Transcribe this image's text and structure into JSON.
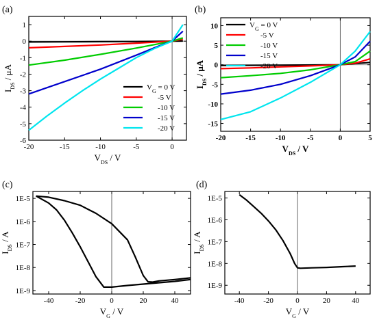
{
  "chart_data": [
    {
      "panel_label": "(a)",
      "type": "line",
      "xlabel_main": "V",
      "xlabel_sub": "DS",
      "xlabel_unit": " / V",
      "ylabel_main": "I",
      "ylabel_sub": "DS",
      "ylabel_unit": " / μA",
      "xlim": [
        -20,
        2
      ],
      "ylim": [
        -6,
        1.5
      ],
      "xticks": [
        -20,
        -15,
        -10,
        -5,
        0
      ],
      "yticks": [
        1,
        0,
        -1,
        -2,
        -3,
        -4,
        -5,
        -6
      ],
      "vline_x": 0,
      "legend_position": "bottom-right",
      "legend": {
        "prefix": "V",
        "prefix_sub": "G",
        "first": " = 0 V",
        "rest": [
          "-5 V",
          "-10 V",
          "-15 V",
          "-20 V"
        ]
      },
      "series": [
        {
          "color": "#000000",
          "x": [
            -20,
            -15,
            -10,
            -5,
            0,
            1.5
          ],
          "y": [
            -0.05,
            -0.04,
            -0.03,
            -0.02,
            0.0,
            0.01
          ]
        },
        {
          "color": "#ff0000",
          "x": [
            -20,
            -15,
            -10,
            -5,
            0,
            1.5
          ],
          "y": [
            -0.4,
            -0.32,
            -0.23,
            -0.12,
            0.0,
            0.12
          ]
        },
        {
          "color": "#00cc00",
          "x": [
            -20,
            -15,
            -10,
            -5,
            -2,
            0,
            1.5
          ],
          "y": [
            -1.45,
            -1.15,
            -0.8,
            -0.42,
            -0.17,
            0.0,
            0.2
          ]
        },
        {
          "color": "#0000cc",
          "x": [
            -20,
            -15,
            -10,
            -5,
            -2,
            0,
            1.5
          ],
          "y": [
            -3.2,
            -2.45,
            -1.7,
            -0.85,
            -0.32,
            0.0,
            0.6
          ]
        },
        {
          "color": "#00e5ee",
          "x": [
            -20,
            -17.5,
            -15,
            -12.5,
            -10,
            -7.5,
            -5,
            -2.5,
            0,
            1.5
          ],
          "y": [
            -5.4,
            -4.55,
            -3.75,
            -3.0,
            -2.3,
            -1.65,
            -1.0,
            -0.45,
            0.0,
            1.0
          ]
        }
      ]
    },
    {
      "panel_label": "(b)",
      "type": "line",
      "xlabel_main": "V",
      "xlabel_sub": "DS",
      "xlabel_unit": " / V",
      "ylabel_main": "I",
      "ylabel_sub": "DS",
      "ylabel_unit": " / μA",
      "bold_labels": true,
      "xlim": [
        -20,
        5
      ],
      "ylim": [
        -17,
        12
      ],
      "xticks": [
        -20,
        -15,
        -10,
        -5,
        0,
        5
      ],
      "yticks": [
        10,
        5,
        0,
        -5,
        -10,
        -15
      ],
      "vline_x": 0,
      "legend_position": "top-left",
      "legend": {
        "prefix": "V",
        "prefix_sub": "G",
        "first": " = 0 V",
        "rest": [
          "-5 V",
          "-10 V",
          "-15 V",
          "-20 V"
        ]
      },
      "series": [
        {
          "color": "#000000",
          "x": [
            -20,
            -10,
            0,
            5
          ],
          "y": [
            -0.2,
            -0.1,
            0.0,
            0.6
          ]
        },
        {
          "color": "#ff0000",
          "x": [
            -20,
            -15,
            -10,
            -5,
            0,
            2.5,
            5
          ],
          "y": [
            -1.0,
            -0.8,
            -0.55,
            -0.3,
            0.0,
            0.4,
            1.5
          ]
        },
        {
          "color": "#00cc00",
          "x": [
            -20,
            -15,
            -10,
            -5,
            0,
            2.5,
            5
          ],
          "y": [
            -3.3,
            -2.8,
            -2.2,
            -1.3,
            0.0,
            0.8,
            3.5
          ]
        },
        {
          "color": "#0000cc",
          "x": [
            -20,
            -15,
            -10,
            -5,
            0,
            2.5,
            5
          ],
          "y": [
            -7.5,
            -6.5,
            -5.0,
            -2.8,
            0.0,
            2.0,
            6.0
          ]
        },
        {
          "color": "#00e5ee",
          "x": [
            -20,
            -15,
            -10,
            -5,
            0,
            2.5,
            5
          ],
          "y": [
            -14.0,
            -12.0,
            -8.5,
            -4.5,
            0.0,
            3.5,
            8.5
          ]
        }
      ]
    },
    {
      "panel_label": "(c)",
      "type": "line",
      "xlabel_main": "V",
      "xlabel_sub": "G",
      "xlabel_unit": " / V",
      "ylabel_main": "I",
      "ylabel_sub": "DS",
      "ylabel_unit": " / A",
      "yscale": "log",
      "xlim": [
        -50,
        50
      ],
      "ylim_exp": [
        -9.15,
        -4.7
      ],
      "xticks": [
        -40,
        -20,
        0,
        20,
        40
      ],
      "yticks": [
        "1E-5",
        "1E-6",
        "1E-7",
        "1E-8",
        "1E-9"
      ],
      "ytick_exps": [
        -5,
        -6,
        -7,
        -8,
        -9
      ],
      "vline_x": 0,
      "series": [
        {
          "color": "#000000",
          "x": [
            -48,
            -40,
            -30,
            -20,
            -10,
            0,
            10,
            15,
            20,
            23,
            26,
            30,
            40,
            50
          ],
          "y_exp": [
            -4.9,
            -4.95,
            -5.1,
            -5.3,
            -5.65,
            -6.1,
            -6.8,
            -7.55,
            -8.35,
            -8.62,
            -8.63,
            -8.58,
            -8.52,
            -8.45
          ]
        },
        {
          "color": "#000000",
          "x": [
            -48,
            -40,
            -35,
            -30,
            -25,
            -20,
            -15,
            -10,
            -5,
            0,
            10,
            20,
            30,
            40,
            50
          ],
          "y_exp": [
            -4.9,
            -5.2,
            -5.5,
            -5.95,
            -6.5,
            -7.1,
            -7.75,
            -8.4,
            -8.85,
            -8.85,
            -8.78,
            -8.72,
            -8.66,
            -8.6,
            -8.52
          ]
        }
      ]
    },
    {
      "panel_label": "(d)",
      "type": "line",
      "xlabel_main": "V",
      "xlabel_sub": "G",
      "xlabel_unit": " / V",
      "ylabel_main": "I",
      "ylabel_sub": "DS",
      "ylabel_unit": " / A",
      "yscale": "log",
      "xlim": [
        -50,
        50
      ],
      "ylim_exp": [
        -9.4,
        -4.7
      ],
      "xticks": [
        -40,
        -20,
        0,
        20,
        40
      ],
      "yticks": [
        "1E-5",
        "1E-6",
        "1E-7",
        "1E-8",
        "1E-9"
      ],
      "ytick_exps": [
        -5,
        -6,
        -7,
        -8,
        -9
      ],
      "vline_x": 0,
      "series": [
        {
          "color": "#000000",
          "x": [
            -40,
            -35,
            -30,
            -25,
            -20,
            -15,
            -10,
            -5,
            -2,
            0,
            2,
            10,
            20,
            30,
            40
          ],
          "y_exp": [
            -4.85,
            -5.1,
            -5.4,
            -5.7,
            -6.05,
            -6.45,
            -6.95,
            -7.55,
            -8.0,
            -8.2,
            -8.22,
            -8.2,
            -8.18,
            -8.15,
            -8.12
          ]
        }
      ]
    }
  ]
}
